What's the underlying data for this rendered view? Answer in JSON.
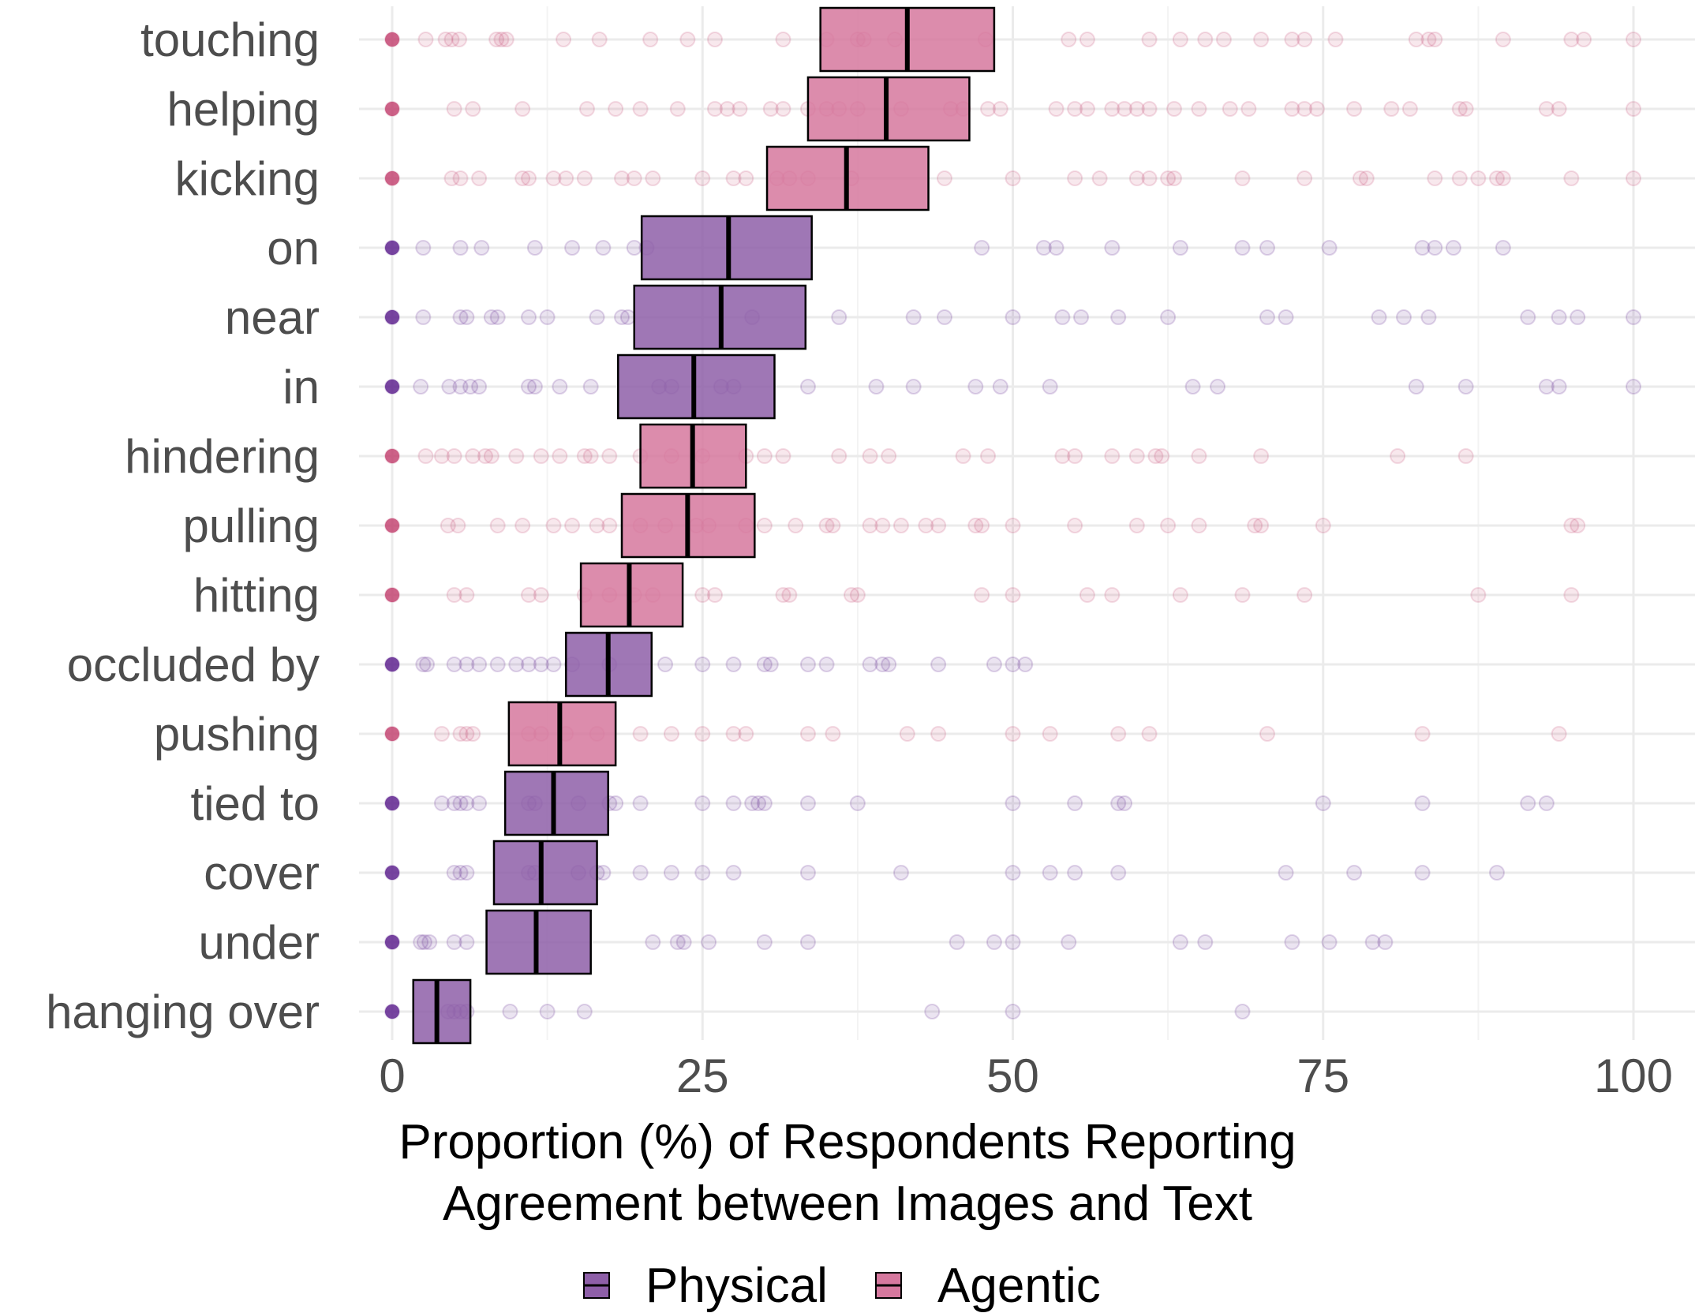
{
  "chart_data": {
    "type": "scatter",
    "subtype": "crossbar-with-jittered-points",
    "title": "",
    "xlabel": [
      "Proportion (%) of Respondents Reporting",
      "Agreement between Images and Text"
    ],
    "ylabel": "",
    "xlim": [
      -3,
      103
    ],
    "xticks": [
      0,
      25,
      50,
      75,
      100
    ],
    "xtick_labels": [
      "0",
      "25",
      "50",
      "75",
      "100"
    ],
    "grid": true,
    "legend": {
      "position": "bottom",
      "entries": [
        {
          "name": "Physical",
          "key": "physical"
        },
        {
          "name": "Agentic",
          "key": "agentic"
        }
      ]
    },
    "colors": {
      "physical_fill": "#8e5fa8",
      "physical_point": "#5a1d8c",
      "agentic_fill": "#d6789e",
      "agentic_point": "#c2406e",
      "box_border": "#000000",
      "grid": "#ebebeb"
    },
    "categories": [
      {
        "label": "touching",
        "group": "agentic",
        "low": 34.5,
        "median": 41.5,
        "high": 48.5,
        "points": [
          0,
          2.7,
          4.3,
          4.8,
          5.4,
          8.4,
          8.8,
          9.2,
          13.8,
          16.7,
          20.8,
          23.8,
          26,
          31.5,
          35,
          37.5,
          38,
          40.5,
          47.8,
          54.5,
          56,
          61,
          63.5,
          65.5,
          67,
          70,
          72.5,
          73.5,
          76,
          82.5,
          83.5,
          84,
          89.5,
          95,
          96,
          100
        ]
      },
      {
        "label": "helping",
        "group": "agentic",
        "low": 33.5,
        "median": 39.8,
        "high": 46.5,
        "points": [
          0,
          5,
          6.5,
          10.5,
          15.7,
          18,
          20,
          23,
          26,
          27,
          28,
          30.5,
          31.5,
          33.5,
          35,
          36,
          37.5,
          41,
          45,
          46,
          48,
          49,
          53.5,
          55,
          56,
          58,
          59,
          60,
          61,
          63,
          65,
          67.5,
          69,
          72.5,
          73.5,
          74.5,
          77.5,
          80.5,
          82,
          86,
          86.5,
          93,
          94,
          100
        ]
      },
      {
        "label": "kicking",
        "group": "agentic",
        "low": 30.2,
        "median": 36.6,
        "high": 43.2,
        "points": [
          0,
          4.8,
          5.5,
          7,
          10.5,
          11,
          13,
          14,
          15.5,
          18.5,
          19.5,
          21,
          25,
          27.5,
          28.5,
          31,
          32,
          33.5,
          37,
          44.5,
          50,
          55,
          57,
          60,
          61,
          62.5,
          63,
          68.5,
          73.5,
          78,
          78.5,
          84,
          86,
          87.5,
          89,
          89.5,
          95,
          100
        ]
      },
      {
        "label": "on",
        "group": "physical",
        "low": 20.1,
        "median": 27.1,
        "high": 33.8,
        "points": [
          0,
          2.5,
          5.5,
          7.2,
          11.5,
          14.5,
          17,
          19.5,
          20.5,
          47.5,
          52.5,
          53.5,
          58,
          63.5,
          68.5,
          70.5,
          75.5,
          83,
          84,
          85.5,
          89.5
        ]
      },
      {
        "label": "near",
        "group": "physical",
        "low": 19.5,
        "median": 26.5,
        "high": 33.3,
        "points": [
          0,
          2.5,
          5.5,
          6,
          8,
          8.5,
          11,
          12.5,
          16.5,
          18.5,
          19,
          29,
          36,
          42,
          44.5,
          50,
          54,
          55.5,
          58.5,
          62.5,
          70.5,
          72,
          79.5,
          81.5,
          83.5,
          91.5,
          94,
          95.5,
          100
        ]
      },
      {
        "label": "in",
        "group": "physical",
        "low": 18.2,
        "median": 24.3,
        "high": 30.8,
        "points": [
          0,
          2.3,
          4.6,
          5.5,
          6.3,
          7,
          11,
          11.5,
          13.5,
          16,
          21.5,
          22.5,
          26.5,
          27.5,
          33.5,
          39,
          42,
          47,
          49,
          53,
          64.5,
          66.5,
          82.5,
          86.5,
          93,
          94,
          100
        ]
      },
      {
        "label": "hindering",
        "group": "agentic",
        "low": 20,
        "median": 24.2,
        "high": 28.5,
        "points": [
          0,
          2.7,
          4,
          5,
          6.5,
          7.5,
          8,
          10,
          12,
          13.5,
          15.5,
          16,
          17.5,
          20,
          22.5,
          25,
          28.5,
          30,
          31.5,
          36,
          38.5,
          40,
          46,
          48,
          54,
          55,
          58,
          60,
          61.5,
          62,
          65,
          70,
          81,
          86.5
        ]
      },
      {
        "label": "pulling",
        "group": "agentic",
        "low": 18.5,
        "median": 23.8,
        "high": 29.2,
        "points": [
          0,
          4.5,
          5.3,
          8.5,
          10.5,
          13,
          14.5,
          16.5,
          17.5,
          20,
          22,
          24.5,
          25.5,
          28.5,
          30,
          32.5,
          35,
          35.5,
          38.5,
          39.5,
          41,
          43,
          44,
          47,
          47.5,
          50,
          55,
          60,
          62.5,
          65,
          69.5,
          70,
          75,
          95,
          95.5
        ]
      },
      {
        "label": "hitting",
        "group": "agentic",
        "low": 15.2,
        "median": 19.1,
        "high": 23.4,
        "points": [
          0,
          5,
          6,
          11,
          12,
          15.5,
          17.5,
          19.5,
          21,
          25,
          26,
          31.5,
          32,
          37,
          37.5,
          47.5,
          50,
          56,
          58,
          63.5,
          68.5,
          73.5,
          87.5,
          95
        ]
      },
      {
        "label": "occluded by",
        "group": "physical",
        "low": 14,
        "median": 17.4,
        "high": 20.9,
        "points": [
          0,
          2.5,
          2.8,
          5,
          6,
          7,
          8.5,
          10,
          11,
          12,
          13,
          14.5,
          17.5,
          22,
          25,
          27.5,
          30,
          30.5,
          33.5,
          35,
          38.5,
          39.5,
          40,
          44,
          48.5,
          50,
          51
        ]
      },
      {
        "label": "pushing",
        "group": "agentic",
        "low": 9.4,
        "median": 13.5,
        "high": 18,
        "points": [
          0,
          4,
          5.5,
          6,
          6.5,
          11,
          12,
          14,
          16.5,
          20,
          22.5,
          25,
          27.5,
          28.5,
          33.5,
          35.5,
          41.5,
          44,
          50,
          53,
          58.5,
          61,
          70.5,
          83,
          94
        ]
      },
      {
        "label": "tied to",
        "group": "physical",
        "low": 9.1,
        "median": 13,
        "high": 17.4,
        "points": [
          0,
          4,
          5,
          5.5,
          6,
          7,
          11,
          11.5,
          15,
          17.5,
          18,
          20,
          25,
          27.5,
          29,
          29.5,
          30,
          33.5,
          37.5,
          50,
          55,
          58.5,
          59,
          75,
          83,
          91.5,
          93
        ]
      },
      {
        "label": "cover",
        "group": "physical",
        "low": 8.2,
        "median": 12,
        "high": 16.5,
        "points": [
          0,
          5,
          5.5,
          6,
          11,
          11.5,
          15,
          16.5,
          17,
          20,
          22.5,
          25,
          27.5,
          33.5,
          41,
          50,
          53,
          55,
          58.5,
          72,
          77.5,
          83,
          89
        ]
      },
      {
        "label": "under",
        "group": "physical",
        "low": 7.6,
        "median": 11.6,
        "high": 16,
        "points": [
          0,
          2.3,
          2.6,
          3,
          5,
          6,
          21,
          23,
          23.5,
          25.5,
          30,
          33.5,
          45.5,
          48.5,
          50,
          54.5,
          63.5,
          65.5,
          72.5,
          75.5,
          79,
          80
        ]
      },
      {
        "label": "hanging over",
        "group": "physical",
        "low": 1.7,
        "median": 3.6,
        "high": 6.3,
        "points": [
          0,
          4.5,
          5,
          5.5,
          6,
          9.5,
          12.5,
          15.5,
          43.5,
          50,
          68.5
        ]
      }
    ]
  }
}
